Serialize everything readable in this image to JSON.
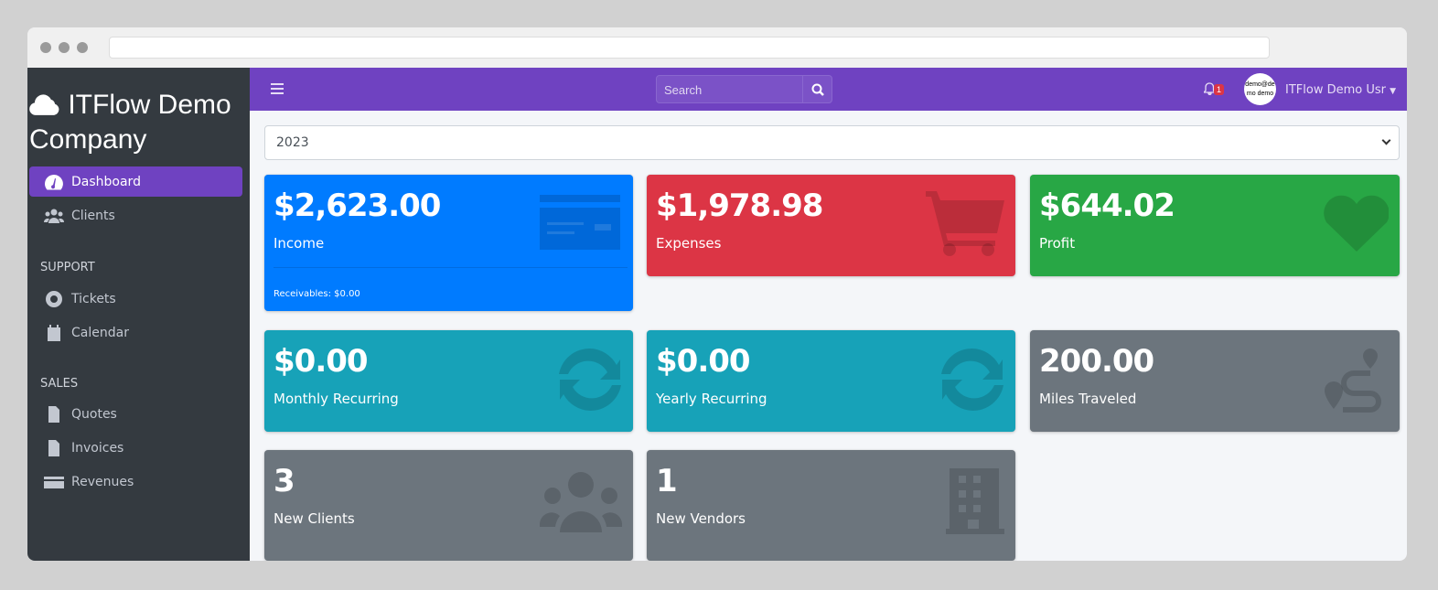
{
  "sidebar": {
    "brand": "ITFlow Demo Company",
    "items": [
      {
        "label": "Dashboard",
        "active": true
      },
      {
        "label": "Clients"
      }
    ],
    "support_header": "SUPPORT",
    "support": [
      {
        "label": "Tickets"
      },
      {
        "label": "Calendar"
      }
    ],
    "sales_header": "SALES",
    "sales": [
      {
        "label": "Quotes"
      },
      {
        "label": "Invoices"
      },
      {
        "label": "Revenues"
      }
    ]
  },
  "navbar": {
    "search_placeholder": "Search",
    "notifications": "1",
    "avatar_text": "demo@demo demo",
    "user": "ITFlow Demo Usr"
  },
  "year_select": "2023",
  "cards": [
    {
      "value": "$2,623.00",
      "label": "Income",
      "footer": "Receivables: $0.00",
      "color": "#007bff",
      "icon": "credit-card-icon"
    },
    {
      "value": "$1,978.98",
      "label": "Expenses",
      "color": "#dc3545",
      "icon": "cart-icon"
    },
    {
      "value": "$644.02",
      "label": "Profit",
      "color": "#28a745",
      "icon": "heart-icon"
    },
    {
      "value": "$0.00",
      "label": "Monthly Recurring",
      "color": "#17a2b8",
      "icon": "sync-icon"
    },
    {
      "value": "$0.00",
      "label": "Yearly Recurring",
      "color": "#17a2b8",
      "icon": "sync-icon"
    },
    {
      "value": "200.00",
      "label": "Miles Traveled",
      "color": "#6c757d",
      "icon": "route-icon"
    },
    {
      "value": "3",
      "label": "New Clients",
      "color": "#6c757d",
      "icon": "users-icon"
    },
    {
      "value": "1",
      "label": "New Vendors",
      "color": "#6c757d",
      "icon": "building-icon"
    }
  ]
}
